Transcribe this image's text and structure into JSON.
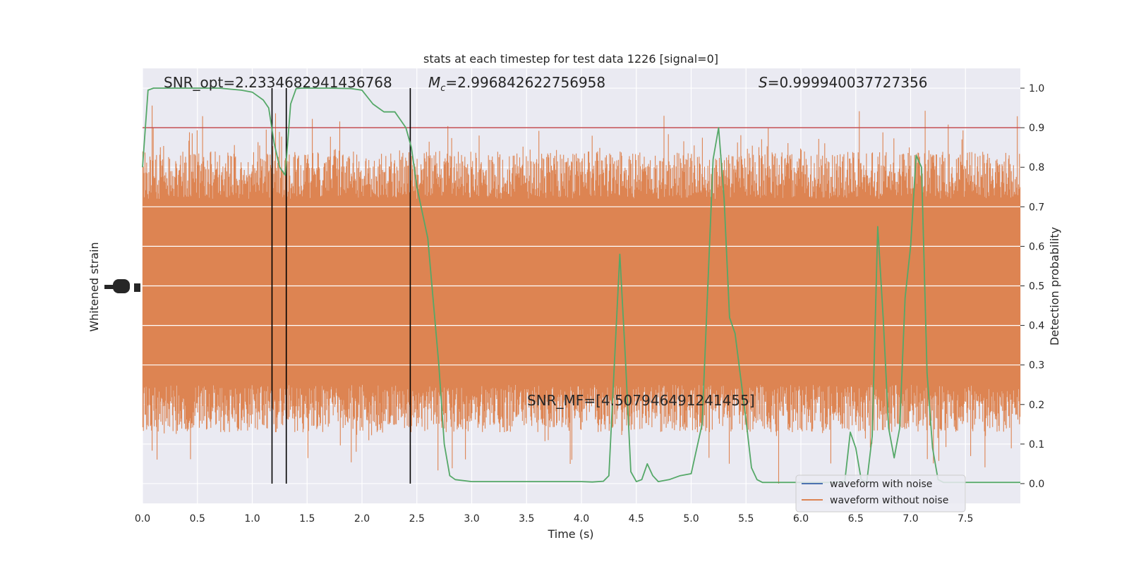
{
  "chart_data": {
    "type": "line",
    "title": "stats at each timestep for test data 1226 [signal=0]",
    "xlabel": "Time (s)",
    "ylabel_left": "Whitened strain",
    "ylabel_right": "Detection probability",
    "xlim": [
      0.0,
      8.0
    ],
    "ylim_right": [
      -0.05,
      1.05
    ],
    "x_ticks": [
      "0.0",
      "0.5",
      "1.0",
      "1.5",
      "2.0",
      "2.5",
      "3.0",
      "3.5",
      "4.0",
      "4.5",
      "5.0",
      "5.5",
      "6.0",
      "6.5",
      "7.0",
      "7.5"
    ],
    "y_ticks_right": [
      "0.0",
      "0.1",
      "0.2",
      "0.3",
      "0.4",
      "0.5",
      "0.6",
      "0.7",
      "0.8",
      "0.9",
      "1.0"
    ],
    "grid": true,
    "legend": {
      "placement": "lower-right",
      "entries": [
        {
          "label": "waveform with noise",
          "color": "#4c72b0"
        },
        {
          "label": "waveform without noise",
          "color": "#dd8452"
        }
      ]
    },
    "annotations": {
      "snr_opt": "SNR_opt=2.2334682941436768",
      "mc_symbol": "M",
      "mc_sub": "c",
      "mc_value": "=2.996842622756958",
      "s_symbol": "S",
      "s_value": "=0.999940037727356",
      "snr_mf": "SNR_MF=[4.507946491241455]"
    },
    "threshold": {
      "value": 0.9,
      "color": "#c44e52"
    },
    "vertical_lines_x": [
      1.18,
      1.31,
      2.44
    ],
    "strain_band": {
      "color": "#dd8452",
      "core_low": 0.25,
      "core_high": 0.72,
      "seed": 1226
    },
    "detection_probability": {
      "color": "#55a868",
      "x": [
        0.0,
        0.05,
        0.1,
        0.2,
        0.3,
        0.5,
        0.7,
        0.9,
        1.0,
        1.1,
        1.15,
        1.2,
        1.25,
        1.3,
        1.35,
        1.4,
        1.45,
        1.5,
        1.7,
        1.9,
        2.0,
        2.1,
        2.15,
        2.2,
        2.3,
        2.35,
        2.4,
        2.45,
        2.5,
        2.6,
        2.7,
        2.75,
        2.8,
        2.85,
        3.0,
        3.5,
        4.0,
        4.1,
        4.2,
        4.25,
        4.3,
        4.35,
        4.4,
        4.45,
        4.5,
        4.55,
        4.6,
        4.65,
        4.7,
        4.8,
        4.9,
        5.0,
        5.1,
        5.2,
        5.25,
        5.3,
        5.35,
        5.4,
        5.5,
        5.55,
        5.6,
        5.65,
        5.7,
        5.8,
        6.0,
        6.2,
        6.3,
        6.4,
        6.45,
        6.5,
        6.55,
        6.6,
        6.65,
        6.7,
        6.75,
        6.8,
        6.85,
        6.9,
        6.95,
        7.0,
        7.05,
        7.1,
        7.15,
        7.2,
        7.25,
        7.3,
        7.35,
        7.5,
        7.7,
        7.9,
        8.0
      ],
      "y": [
        0.8,
        0.995,
        1.0,
        1.0,
        1.0,
        1.0,
        1.0,
        0.995,
        0.99,
        0.97,
        0.95,
        0.86,
        0.8,
        0.78,
        0.96,
        0.999,
        1.0,
        1.0,
        1.0,
        0.999,
        0.995,
        0.96,
        0.95,
        0.94,
        0.94,
        0.92,
        0.9,
        0.85,
        0.75,
        0.62,
        0.3,
        0.1,
        0.02,
        0.01,
        0.005,
        0.005,
        0.005,
        0.004,
        0.006,
        0.02,
        0.3,
        0.58,
        0.32,
        0.03,
        0.005,
        0.01,
        0.05,
        0.02,
        0.005,
        0.01,
        0.02,
        0.025,
        0.15,
        0.82,
        0.9,
        0.72,
        0.42,
        0.38,
        0.16,
        0.04,
        0.01,
        0.003,
        0.003,
        0.003,
        0.003,
        0.003,
        0.003,
        0.005,
        0.13,
        0.09,
        0.01,
        0.003,
        0.12,
        0.65,
        0.42,
        0.14,
        0.065,
        0.14,
        0.47,
        0.6,
        0.83,
        0.8,
        0.28,
        0.09,
        0.01,
        0.003,
        0.003,
        0.003,
        0.003,
        0.003,
        0.003
      ]
    }
  }
}
